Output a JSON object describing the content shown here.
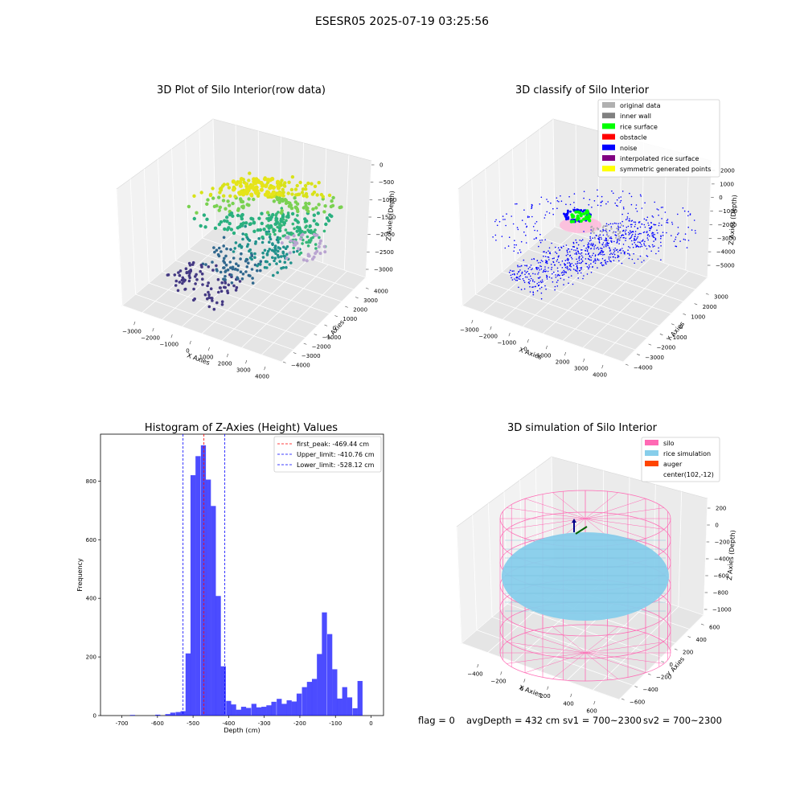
{
  "suptitle": "ESESR05 2025-07-19 03:25:56",
  "panels": {
    "raw": {
      "title": "3D Plot of Silo Interior(row data)",
      "xlabel": "X Axies",
      "ylabel": "Y Axies",
      "zlabel": "Z Axies (Depth)",
      "xticks": [
        "−3000",
        "−2000",
        "−1000",
        "0",
        "1000",
        "2000",
        "3000",
        "4000"
      ],
      "yticks": [
        "4000",
        "3000",
        "2000",
        "1000",
        "0",
        "−1000",
        "−2000",
        "−3000",
        "−4000"
      ],
      "zticks": [
        "0",
        "−500",
        "−1000",
        "−1500",
        "−2000",
        "−2500",
        "−3000"
      ]
    },
    "classify": {
      "title": "3D classify of Silo Interior",
      "xlabel": "X Axies",
      "ylabel": "Y Axies",
      "zlabel": "Z Axies (Depth)",
      "xticks": [
        "−3000",
        "−2000",
        "−1000",
        "0",
        "1000",
        "2000",
        "3000",
        "4000"
      ],
      "yticks": [
        "3000",
        "2000",
        "1000",
        "0",
        "−1000",
        "−2000",
        "−3000",
        "−4000"
      ],
      "zticks": [
        "2000",
        "1000",
        "0",
        "−1000",
        "−2000",
        "−3000",
        "−4000",
        "−5000"
      ],
      "legend": [
        {
          "label": "original data",
          "color": "#b0b0b0"
        },
        {
          "label": "inner wall",
          "color": "#808080"
        },
        {
          "label": "rice surface",
          "color": "#00ff00"
        },
        {
          "label": "obstacle",
          "color": "#ff0000"
        },
        {
          "label": "noise",
          "color": "#0000ff"
        },
        {
          "label": "interpolated rice surface",
          "color": "#800080"
        },
        {
          "label": "symmetric generated points",
          "color": "#ffff00"
        }
      ]
    },
    "simulation": {
      "title": "3D simulation of Silo Interior",
      "xlabel": "X Axies",
      "ylabel": "Y Axies",
      "zlabel": "Z Axies (Depth)",
      "xticks": [
        "−400",
        "−200",
        "0",
        "200",
        "400",
        "600"
      ],
      "yticks": [
        "600",
        "400",
        "200",
        "0",
        "−200",
        "−400",
        "−600"
      ],
      "zticks": [
        "200",
        "0",
        "−200",
        "−400",
        "−600",
        "−800",
        "−1000"
      ],
      "legend": [
        {
          "label": "silo",
          "color": "#ff69b4"
        },
        {
          "label": "rice simulation",
          "color": "#87ceeb"
        },
        {
          "label": "auger",
          "color": "#ff4500"
        },
        {
          "label": "center(102,-12)",
          "color": "none"
        }
      ]
    }
  },
  "status": {
    "flag": "flag = 0",
    "avg_depth": "avgDepth = 432 cm",
    "sv1": "sv1 = 700~2300",
    "sv2": "sv2 = 700~2300"
  },
  "chart_data": {
    "type": "bar",
    "title": "Histogram of Z-Axies (Height) Values",
    "xlabel": "Depth (cm)",
    "ylabel": "Frequency",
    "xlim": [
      -760,
      35
    ],
    "ylim": [
      0,
      960
    ],
    "xticks": [
      -700,
      -600,
      -500,
      -400,
      -300,
      -200,
      -100,
      0
    ],
    "yticks": [
      0,
      200,
      400,
      600,
      800
    ],
    "bin_width": 14.2,
    "bins": [
      {
        "x": -741,
        "y": 0
      },
      {
        "x": -727,
        "y": 0
      },
      {
        "x": -713,
        "y": 0
      },
      {
        "x": -699,
        "y": 0
      },
      {
        "x": -684,
        "y": 0
      },
      {
        "x": -670,
        "y": 2
      },
      {
        "x": -656,
        "y": 0
      },
      {
        "x": -642,
        "y": 0
      },
      {
        "x": -628,
        "y": 0
      },
      {
        "x": -613,
        "y": 0
      },
      {
        "x": -599,
        "y": 3
      },
      {
        "x": -585,
        "y": 0
      },
      {
        "x": -571,
        "y": 5
      },
      {
        "x": -557,
        "y": 10
      },
      {
        "x": -542,
        "y": 12
      },
      {
        "x": -528,
        "y": 15
      },
      {
        "x": -514,
        "y": 212
      },
      {
        "x": -500,
        "y": 820
      },
      {
        "x": -486,
        "y": 885
      },
      {
        "x": -471,
        "y": 922
      },
      {
        "x": -457,
        "y": 805
      },
      {
        "x": -443,
        "y": 715
      },
      {
        "x": -429,
        "y": 408
      },
      {
        "x": -415,
        "y": 168
      },
      {
        "x": -400,
        "y": 50
      },
      {
        "x": -386,
        "y": 38
      },
      {
        "x": -372,
        "y": 20
      },
      {
        "x": -358,
        "y": 30
      },
      {
        "x": -344,
        "y": 26
      },
      {
        "x": -329,
        "y": 40
      },
      {
        "x": -315,
        "y": 28
      },
      {
        "x": -301,
        "y": 30
      },
      {
        "x": -287,
        "y": 35
      },
      {
        "x": -273,
        "y": 47
      },
      {
        "x": -258,
        "y": 57
      },
      {
        "x": -244,
        "y": 40
      },
      {
        "x": -230,
        "y": 52
      },
      {
        "x": -216,
        "y": 48
      },
      {
        "x": -202,
        "y": 75
      },
      {
        "x": -187,
        "y": 97
      },
      {
        "x": -173,
        "y": 115
      },
      {
        "x": -159,
        "y": 125
      },
      {
        "x": -145,
        "y": 210
      },
      {
        "x": -131,
        "y": 352
      },
      {
        "x": -116,
        "y": 278
      },
      {
        "x": -102,
        "y": 158
      },
      {
        "x": -88,
        "y": 58
      },
      {
        "x": -74,
        "y": 97
      },
      {
        "x": -60,
        "y": 62
      },
      {
        "x": -45,
        "y": 25
      },
      {
        "x": -31,
        "y": 118
      }
    ],
    "vlines": [
      {
        "label": "first_peak: -469.44 cm",
        "x": -469.44,
        "color": "#ff0000"
      },
      {
        "label": "Upper_limit: -410.76 cm",
        "x": -410.76,
        "color": "#0000ff"
      },
      {
        "label": "Lower_limit: -528.12 cm",
        "x": -528.12,
        "color": "#0000ff"
      }
    ],
    "bar_color": "#0000ff"
  }
}
